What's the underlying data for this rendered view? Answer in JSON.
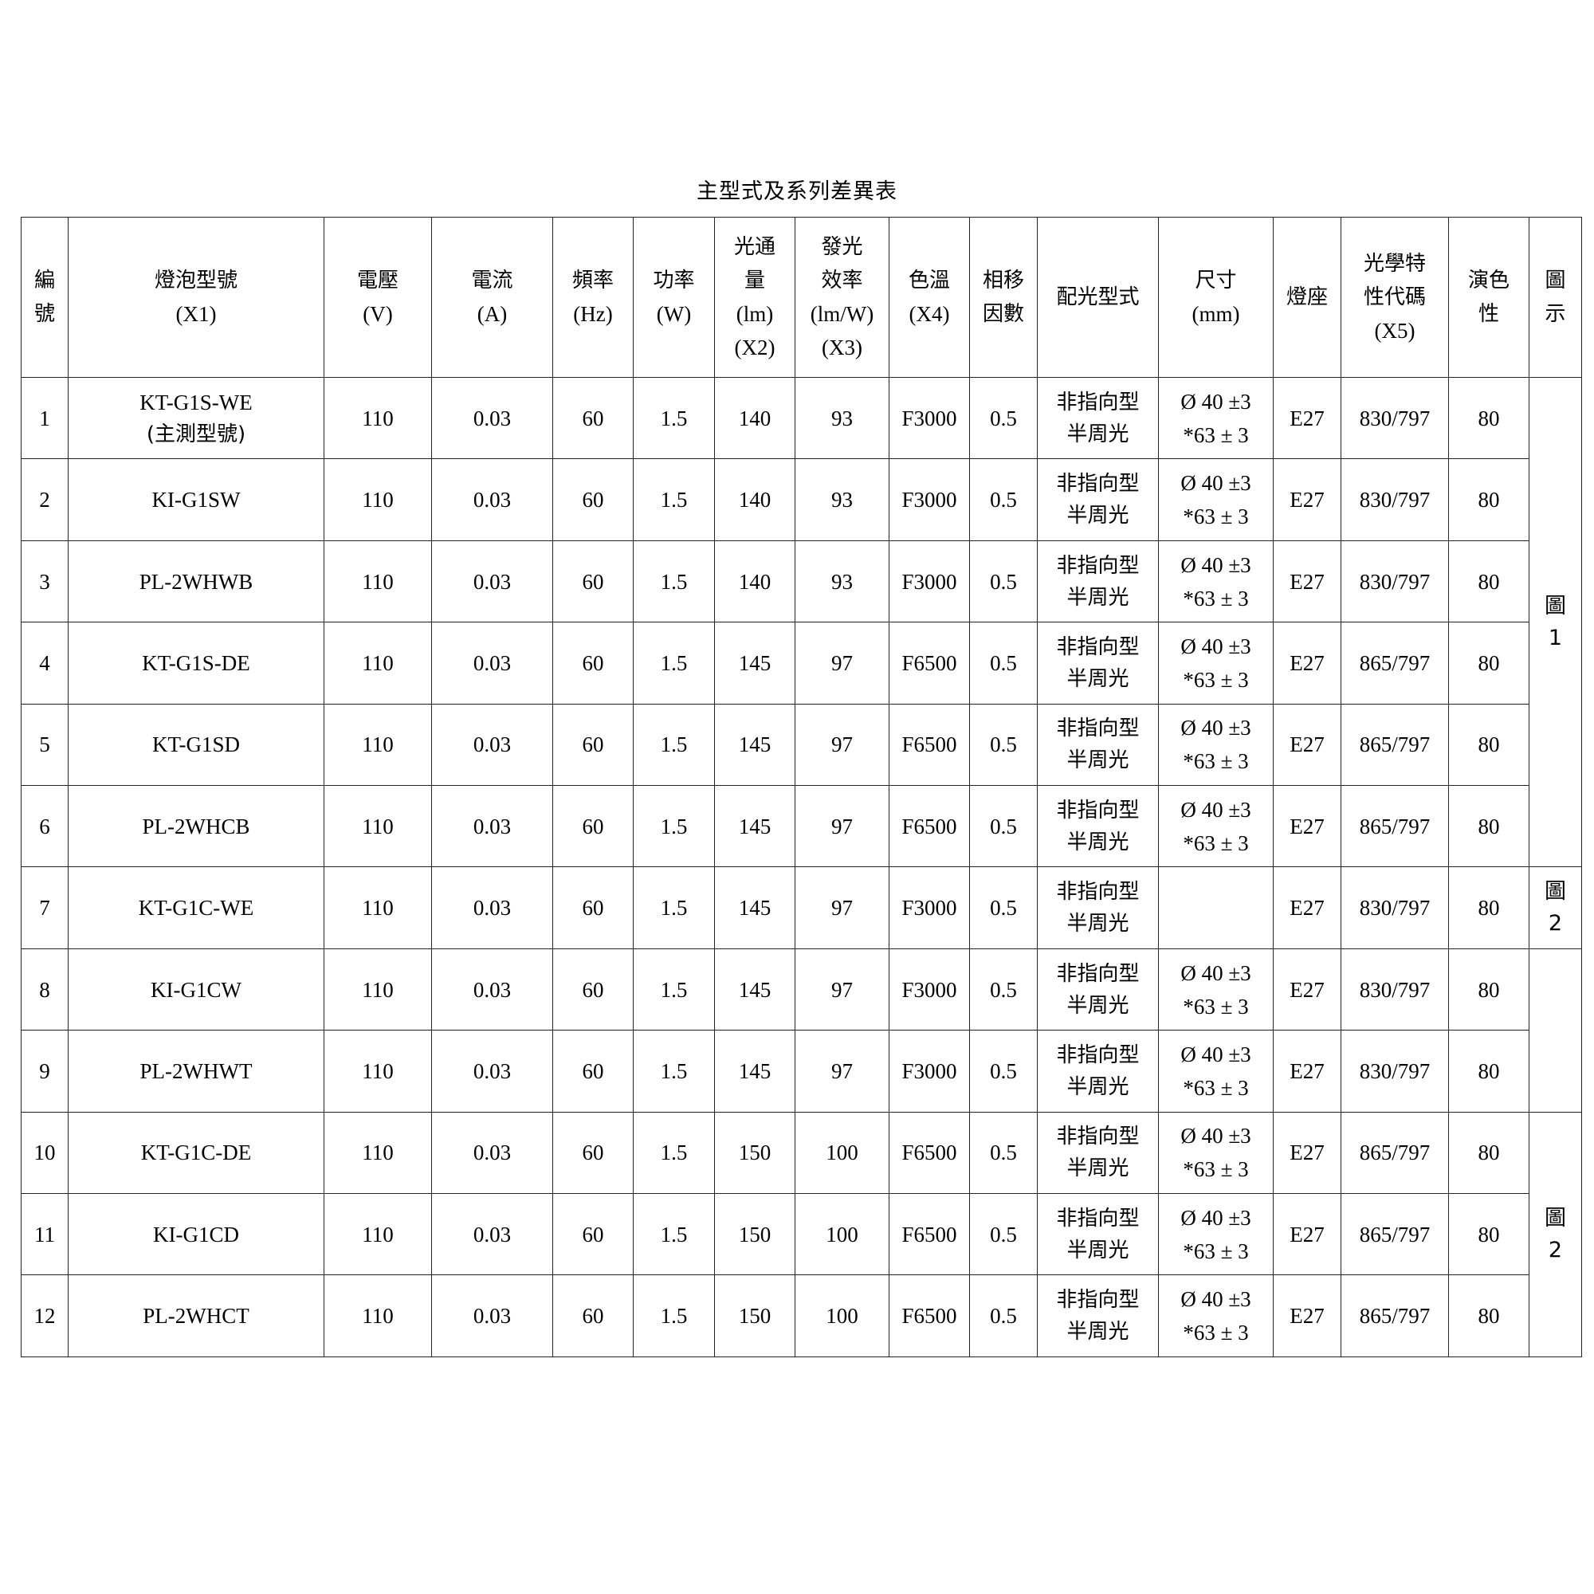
{
  "title": "主型式及系列差異表",
  "headers": [
    {
      "key": "no",
      "cjk": "編\n號",
      "lat": ""
    },
    {
      "key": "model",
      "cjk": "燈泡型號",
      "lat": "(X1)"
    },
    {
      "key": "voltage",
      "cjk": "電壓",
      "lat": "(V)"
    },
    {
      "key": "current",
      "cjk": "電流",
      "lat": "(A)"
    },
    {
      "key": "frequency",
      "cjk": "頻率",
      "lat": "(Hz)"
    },
    {
      "key": "power",
      "cjk": "功率",
      "lat": "(W)"
    },
    {
      "key": "flux",
      "cjk": "光通\n量",
      "lat": "(lm)\n(X2)"
    },
    {
      "key": "efficacy",
      "cjk": "發光\n效率",
      "lat": "(lm/W)\n(X3)"
    },
    {
      "key": "cct",
      "cjk": "色溫",
      "lat": "(X4)"
    },
    {
      "key": "pf",
      "cjk": "相移\n因數",
      "lat": ""
    },
    {
      "key": "distribution",
      "cjk": "配光型式",
      "lat": ""
    },
    {
      "key": "size",
      "cjk": "尺寸",
      "lat": "(mm)"
    },
    {
      "key": "base",
      "cjk": "燈座",
      "lat": ""
    },
    {
      "key": "optical",
      "cjk": "光學特\n性代碼",
      "lat": "(X5)"
    },
    {
      "key": "cri",
      "cjk": "演色\n性",
      "lat": ""
    },
    {
      "key": "figure",
      "cjk": "圖\n示",
      "lat": ""
    }
  ],
  "rows": [
    {
      "no": "1",
      "model": "KT-G1S-WE",
      "model_note": "(主測型號)",
      "voltage": "110",
      "current": "0.03",
      "frequency": "60",
      "power": "1.5",
      "flux": "140",
      "efficacy": "93",
      "cct": "F3000",
      "pf": "0.5",
      "distribution": "非指向型\n半周光",
      "size": "Ø 40 ±3\n*63 ± 3",
      "base": "E27",
      "optical": "830/797",
      "cri": "80"
    },
    {
      "no": "2",
      "model": "KI-G1SW",
      "model_note": "",
      "voltage": "110",
      "current": "0.03",
      "frequency": "60",
      "power": "1.5",
      "flux": "140",
      "efficacy": "93",
      "cct": "F3000",
      "pf": "0.5",
      "distribution": "非指向型\n半周光",
      "size": "Ø 40 ±3\n*63 ± 3",
      "base": "E27",
      "optical": "830/797",
      "cri": "80"
    },
    {
      "no": "3",
      "model": "PL-2WHWB",
      "model_note": "",
      "voltage": "110",
      "current": "0.03",
      "frequency": "60",
      "power": "1.5",
      "flux": "140",
      "efficacy": "93",
      "cct": "F3000",
      "pf": "0.5",
      "distribution": "非指向型\n半周光",
      "size": "Ø 40 ±3\n*63 ± 3",
      "base": "E27",
      "optical": "830/797",
      "cri": "80"
    },
    {
      "no": "4",
      "model": "KT-G1S-DE",
      "model_note": "",
      "voltage": "110",
      "current": "0.03",
      "frequency": "60",
      "power": "1.5",
      "flux": "145",
      "efficacy": "97",
      "cct": "F6500",
      "pf": "0.5",
      "distribution": "非指向型\n半周光",
      "size": "Ø 40 ±3\n*63 ± 3",
      "base": "E27",
      "optical": "865/797",
      "cri": "80"
    },
    {
      "no": "5",
      "model": "KT-G1SD",
      "model_note": "",
      "voltage": "110",
      "current": "0.03",
      "frequency": "60",
      "power": "1.5",
      "flux": "145",
      "efficacy": "97",
      "cct": "F6500",
      "pf": "0.5",
      "distribution": "非指向型\n半周光",
      "size": "Ø 40 ±3\n*63 ± 3",
      "base": "E27",
      "optical": "865/797",
      "cri": "80"
    },
    {
      "no": "6",
      "model": "PL-2WHCB",
      "model_note": "",
      "voltage": "110",
      "current": "0.03",
      "frequency": "60",
      "power": "1.5",
      "flux": "145",
      "efficacy": "97",
      "cct": "F6500",
      "pf": "0.5",
      "distribution": "非指向型\n半周光",
      "size": "Ø 40 ±3\n*63 ± 3",
      "base": "E27",
      "optical": "865/797",
      "cri": "80"
    },
    {
      "no": "7",
      "model": "KT-G1C-WE",
      "model_note": "",
      "voltage": "110",
      "current": "0.03",
      "frequency": "60",
      "power": "1.5",
      "flux": "145",
      "efficacy": "97",
      "cct": "F3000",
      "pf": "0.5",
      "distribution": "非指向型\n半周光",
      "size": "",
      "base": "E27",
      "optical": "830/797",
      "cri": "80"
    },
    {
      "no": "8",
      "model": "KI-G1CW",
      "model_note": "",
      "voltage": "110",
      "current": "0.03",
      "frequency": "60",
      "power": "1.5",
      "flux": "145",
      "efficacy": "97",
      "cct": "F3000",
      "pf": "0.5",
      "distribution": "非指向型\n半周光",
      "size": "Ø 40 ±3\n*63 ± 3",
      "base": "E27",
      "optical": "830/797",
      "cri": "80"
    },
    {
      "no": "9",
      "model": "PL-2WHWT",
      "model_note": "",
      "voltage": "110",
      "current": "0.03",
      "frequency": "60",
      "power": "1.5",
      "flux": "145",
      "efficacy": "97",
      "cct": "F3000",
      "pf": "0.5",
      "distribution": "非指向型\n半周光",
      "size": "Ø 40 ±3\n*63 ± 3",
      "base": "E27",
      "optical": "830/797",
      "cri": "80"
    },
    {
      "no": "10",
      "model": "KT-G1C-DE",
      "model_note": "",
      "voltage": "110",
      "current": "0.03",
      "frequency": "60",
      "power": "1.5",
      "flux": "150",
      "efficacy": "100",
      "cct": "F6500",
      "pf": "0.5",
      "distribution": "非指向型\n半周光",
      "size": "Ø 40 ±3\n*63 ± 3",
      "base": "E27",
      "optical": "865/797",
      "cri": "80"
    },
    {
      "no": "11",
      "model": "KI-G1CD",
      "model_note": "",
      "voltage": "110",
      "current": "0.03",
      "frequency": "60",
      "power": "1.5",
      "flux": "150",
      "efficacy": "100",
      "cct": "F6500",
      "pf": "0.5",
      "distribution": "非指向型\n半周光",
      "size": "Ø 40 ±3\n*63 ± 3",
      "base": "E27",
      "optical": "865/797",
      "cri": "80"
    },
    {
      "no": "12",
      "model": "PL-2WHCT",
      "model_note": "",
      "voltage": "110",
      "current": "0.03",
      "frequency": "60",
      "power": "1.5",
      "flux": "150",
      "efficacy": "100",
      "cct": "F6500",
      "pf": "0.5",
      "distribution": "非指向型\n半周光",
      "size": "Ø 40 ±3\n*63 ± 3",
      "base": "E27",
      "optical": "865/797",
      "cri": "80"
    }
  ],
  "figure_groups": [
    {
      "label": "圖\n1",
      "rows": 6
    },
    {
      "label": "圖\n2",
      "rows": 1
    },
    {
      "label": "",
      "rows": 2
    },
    {
      "label": "圖\n2",
      "rows": 3
    }
  ]
}
